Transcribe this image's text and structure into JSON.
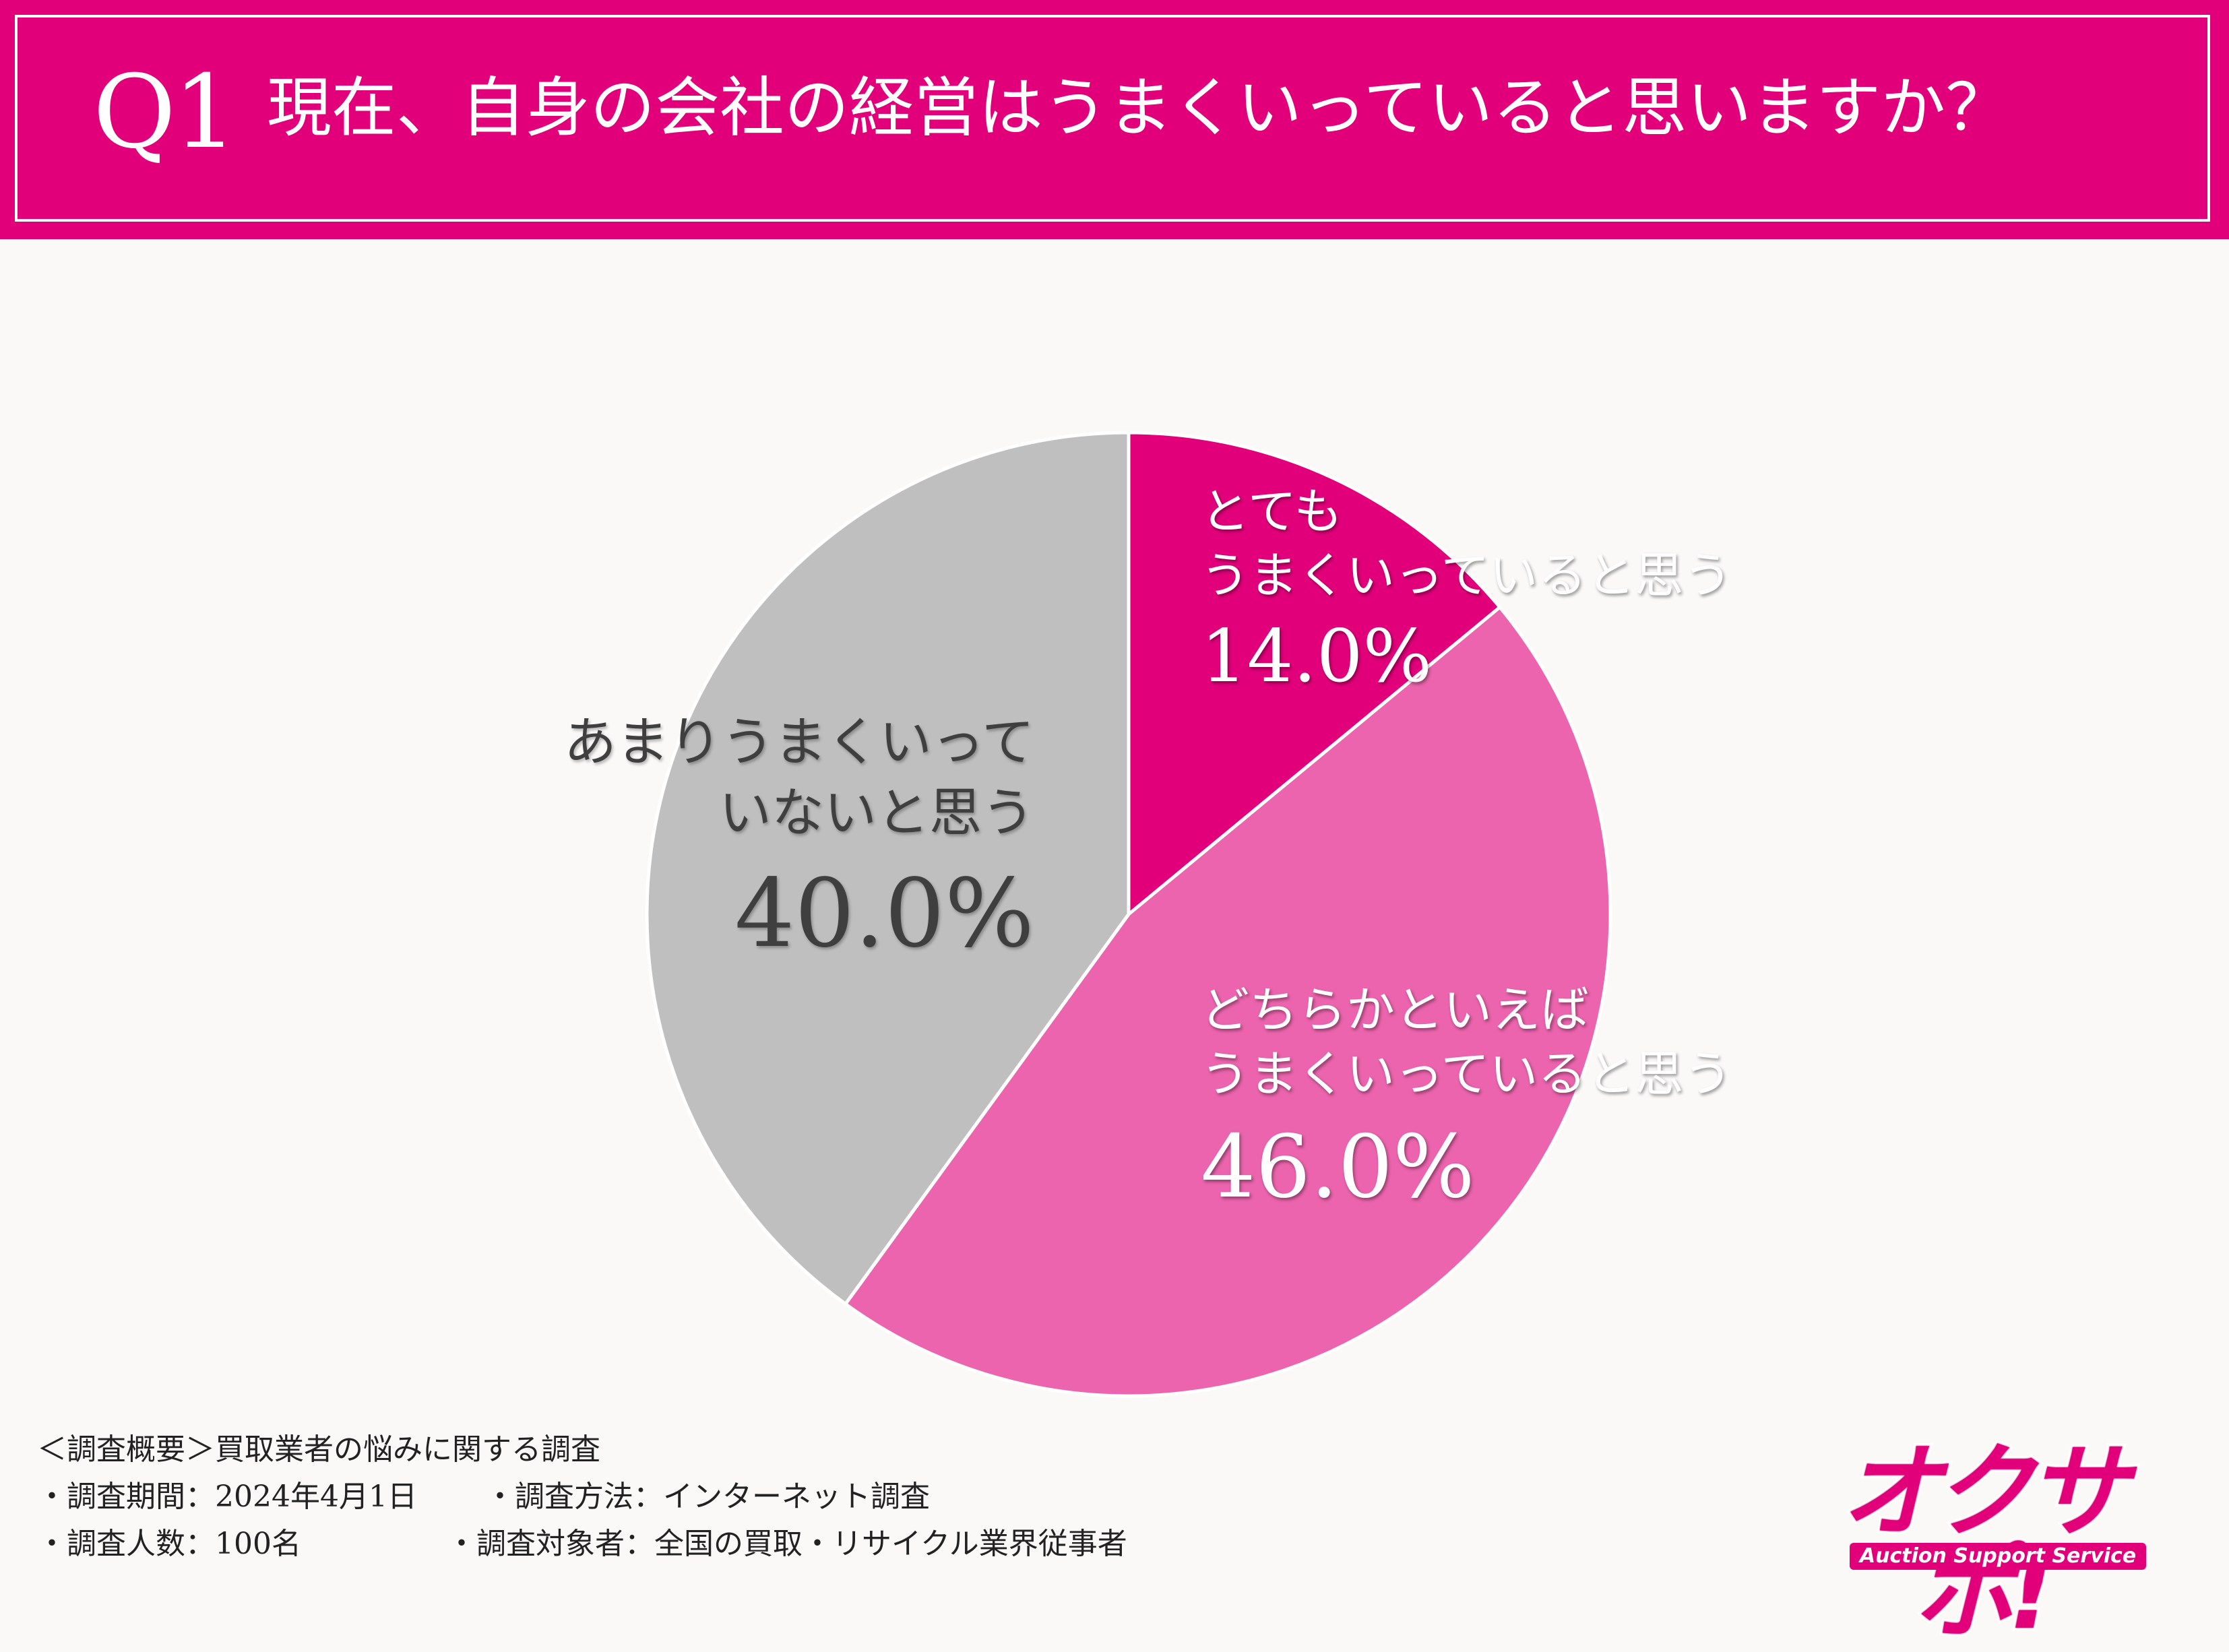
{
  "header": {
    "q_number": "Q1",
    "question": "現在、自身の会社の経営はうまくいっていると思いますか？"
  },
  "chart_data": {
    "type": "pie",
    "start": "12 o'clock, clockwise",
    "slices": [
      {
        "label_lines": [
          "とても",
          "うまくいっていると思う"
        ],
        "value": 14.0,
        "display": "14.0%",
        "color": "#e2007a"
      },
      {
        "label_lines": [
          "どちらかといえば",
          "うまくいっていると思う"
        ],
        "value": 46.0,
        "display": "46.0%",
        "color": "#eb64ad"
      },
      {
        "label_lines": [
          "あまりうまくいって",
          "いないと思う"
        ],
        "value": 40.0,
        "display": "40.0%",
        "color": "#bfbfbf"
      }
    ]
  },
  "footer": {
    "summary": "＜調査概要＞買取業者の悩みに関する調査",
    "period": "・調査期間：2024年4月1日",
    "method": "・調査方法：インターネット調査",
    "respondents": "・調査人数：100名",
    "target": "・調査対象者：全国の買取・リサイクル業界従事者"
  },
  "logo": {
    "wordmark": "オクサポ!",
    "tagline": "Auction Support Service"
  }
}
